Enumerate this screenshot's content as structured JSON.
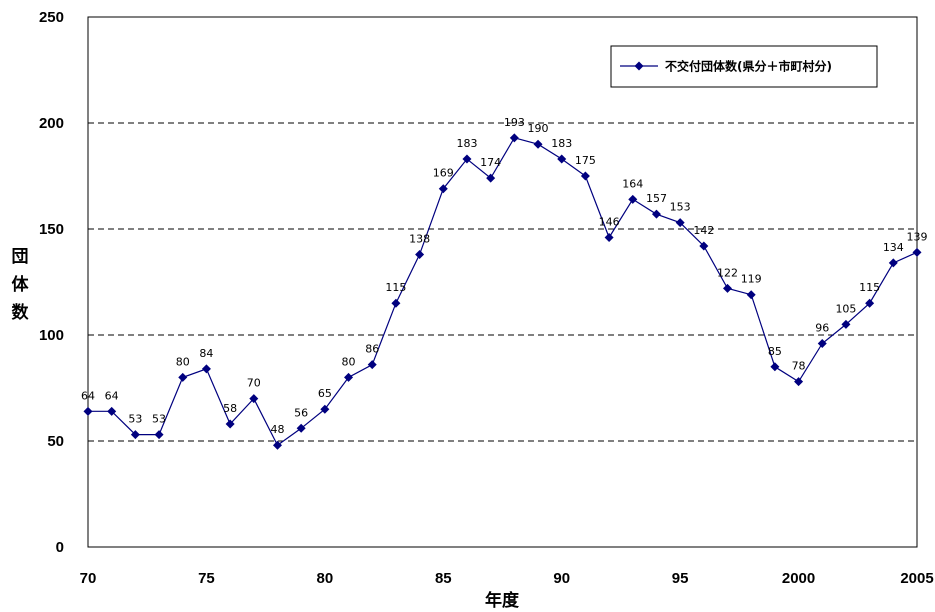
{
  "chart_data": {
    "type": "line",
    "title": "",
    "xlabel": "年度",
    "ylabel": "団体数",
    "xlim": [
      1970,
      2005
    ],
    "ylim": [
      0,
      250
    ],
    "x_ticks": [
      1970,
      1975,
      1980,
      1985,
      1990,
      1995,
      2000,
      2005
    ],
    "x_tick_labels": [
      "70",
      "75",
      "80",
      "85",
      "90",
      "95",
      "2000",
      "2005"
    ],
    "y_ticks": [
      0,
      50,
      100,
      150,
      200,
      250
    ],
    "y_tick_labels": [
      "0",
      "50",
      "100",
      "150",
      "200",
      "250"
    ],
    "grid": "horizontal-dashed",
    "legend_position": "top-right",
    "series": [
      {
        "name": "不交付団体数(県分＋市町村分)",
        "color": "#00007f",
        "marker": "diamond",
        "x": [
          1970,
          1971,
          1972,
          1973,
          1974,
          1975,
          1976,
          1977,
          1978,
          1979,
          1980,
          1981,
          1982,
          1983,
          1984,
          1985,
          1986,
          1987,
          1988,
          1989,
          1990,
          1991,
          1992,
          1993,
          1994,
          1995,
          1996,
          1997,
          1998,
          1999,
          2000,
          2001,
          2002,
          2003,
          2004,
          2005
        ],
        "values": [
          64,
          64,
          53,
          53,
          80,
          84,
          58,
          70,
          48,
          56,
          65,
          80,
          86,
          115,
          138,
          169,
          183,
          174,
          193,
          190,
          183,
          175,
          146,
          164,
          157,
          153,
          142,
          122,
          119,
          85,
          78,
          96,
          105,
          115,
          134,
          139
        ],
        "labels": [
          "64",
          "64",
          "53",
          "53",
          "80",
          "84",
          "58",
          "70",
          "48",
          "56",
          "65",
          "80",
          "86",
          "115",
          "138",
          "169",
          "183",
          "174",
          "193",
          "190",
          "183",
          "175",
          "146",
          "164",
          "157",
          "153",
          "142",
          "122",
          "119",
          "85",
          "78",
          "96",
          "105",
          "115",
          "134",
          "139"
        ]
      }
    ]
  }
}
